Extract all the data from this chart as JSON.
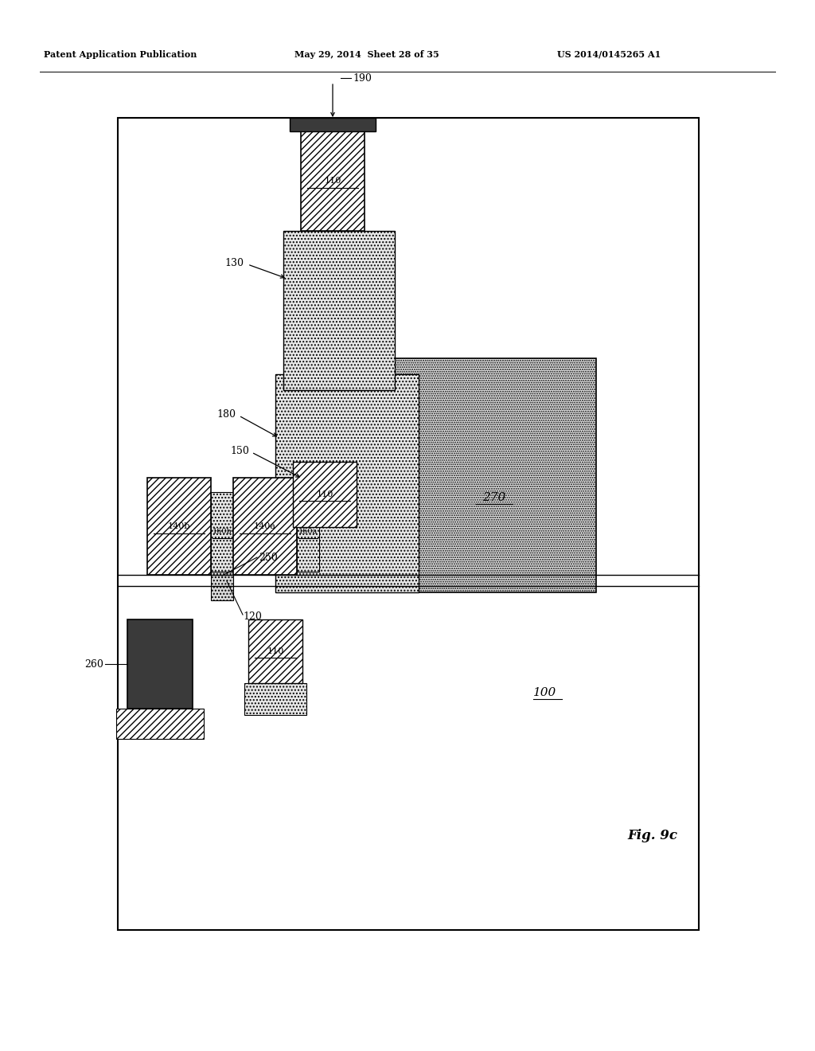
{
  "header_left": "Patent Application Publication",
  "header_mid": "May 29, 2014  Sheet 28 of 35",
  "header_right": "US 2014/0145265 A1",
  "fig_caption": "Fig. 9c",
  "bg": "#ffffff",
  "lbl_100": "100",
  "lbl_110": "110",
  "lbl_120": "120",
  "lbl_130": "130",
  "lbl_140a": "140a",
  "lbl_140b": "140b",
  "lbl_150": "150",
  "lbl_160a": "160a",
  "lbl_160b": "160b",
  "lbl_180": "180",
  "lbl_190": "190",
  "lbl_250": "250",
  "lbl_260": "260",
  "lbl_270": "270",
  "color_dark": "#3c3c3c",
  "color_dot_light": "#e8e8e8",
  "color_dot_med": "#d8d8d8",
  "color_white": "#ffffff",
  "color_black": "#000000"
}
